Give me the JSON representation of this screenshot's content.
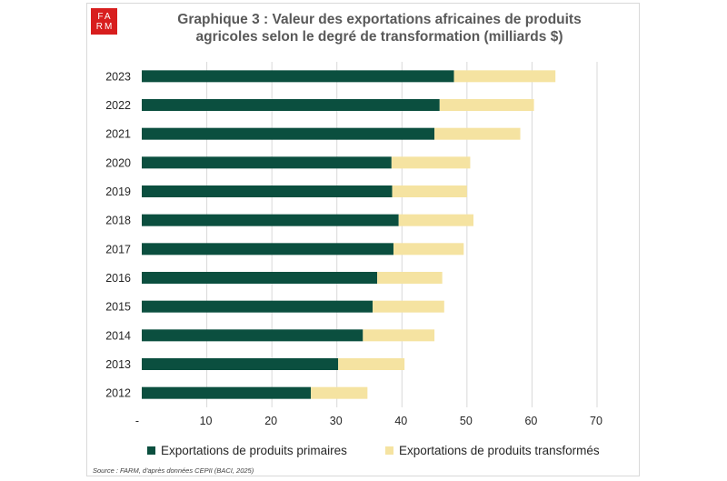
{
  "logo": {
    "line1": "FA",
    "line2": "RM"
  },
  "title": {
    "line1": "Graphique 3 : Valeur des exportations africaines de produits",
    "line2": "agricoles selon le degré de transformation (milliards $)"
  },
  "source": "Source : FARM, d'après données CEPII (BACI, 2025)",
  "colors": {
    "primaires": "#0b4f3f",
    "transformes": "#f5e3a1",
    "brand": "#d81e1e"
  },
  "chart_data": {
    "type": "bar",
    "orientation": "horizontal",
    "stacked": true,
    "categories": [
      "2023",
      "2022",
      "2021",
      "2020",
      "2019",
      "2018",
      "2017",
      "2016",
      "2015",
      "2014",
      "2013",
      "2012"
    ],
    "series": [
      {
        "name": "Exportations de produits primaires",
        "values": [
          48.0,
          45.8,
          45.0,
          38.4,
          38.5,
          39.5,
          38.7,
          36.2,
          35.5,
          34.0,
          30.2,
          26.0
        ]
      },
      {
        "name": "Exportations de produits transformés",
        "values": [
          15.6,
          14.5,
          13.2,
          12.1,
          11.5,
          11.5,
          10.8,
          10.0,
          11.0,
          11.0,
          10.2,
          8.7
        ]
      }
    ],
    "xlim": [
      0,
      70
    ],
    "xticks": [
      "-",
      "10",
      "20",
      "30",
      "40",
      "50",
      "60",
      "70"
    ],
    "grid": "vertical",
    "legend_position": "bottom"
  }
}
